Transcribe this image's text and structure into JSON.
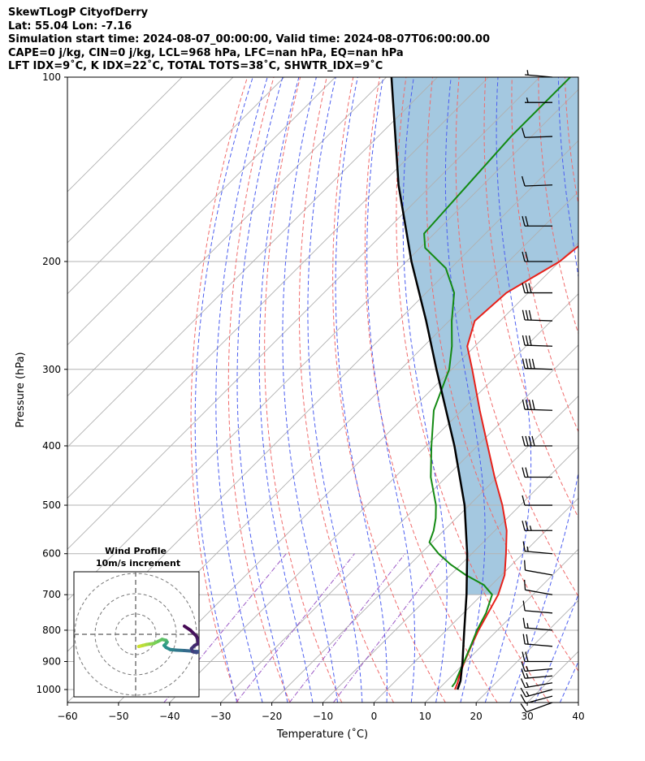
{
  "header": {
    "line1": "SkewTLogP CityofDerry",
    "line2": "Lat: 55.04   Lon: -7.16",
    "line3": "Simulation start time: 2024-08-07_00:00:00, Valid time: 2024-08-07T06:00:00.00",
    "line4": "CAPE=0 j/kg, CIN=0 j/kg, LCL=968 hPa, LFC=nan hPa, EQ=nan hPa",
    "line5": "LFT IDX=9˚C, K IDX=22˚C, TOTAL TOTS=38˚C, SHWTR_IDX=9˚C"
  },
  "chart_data": {
    "type": "line",
    "subtype": "skew-t log-p",
    "xlabel": "Temperature (˚C)",
    "ylabel": "Pressure (hPa)",
    "xlim": [
      -60,
      40
    ],
    "ylim": [
      1050,
      100
    ],
    "x_ticks": [
      -60,
      -50,
      -40,
      -30,
      -20,
      -10,
      0,
      10,
      20,
      30,
      40
    ],
    "x_tick_labels": [
      "−60",
      "−50",
      "−40",
      "−30",
      "−20",
      "−10",
      "0",
      "10",
      "20",
      "30",
      "40"
    ],
    "y_ticks": [
      1000,
      900,
      800,
      700,
      600,
      500,
      400,
      300,
      200,
      100
    ],
    "y_tick_labels": [
      "1000",
      "900",
      "800",
      "700",
      "600",
      "500",
      "400",
      "300",
      "200",
      "100"
    ],
    "grid": true,
    "y_scale": "log",
    "colors": {
      "temperature": "#e8211a",
      "dewpoint": "#138a13",
      "parcel": "#000000",
      "shade": "#a4c8e0",
      "dry_adiabat": "#f06b6b",
      "moist_adiabat": "#4c5ef0",
      "mixing_ratio": "#9b59c6",
      "isotherm": "#b0b0b0"
    },
    "series": [
      {
        "name": "Temperature",
        "p": [
          1000,
          975,
          950,
          925,
          900,
          850,
          800,
          750,
          700,
          650,
          600,
          550,
          500,
          450,
          400,
          350,
          300,
          275,
          250,
          225,
          200,
          175,
          150,
          125,
          110,
          100
        ],
        "t": [
          13.3,
          12.5,
          11.5,
          10.6,
          9.7,
          8.0,
          6.3,
          4.8,
          3.2,
          0.6,
          -3.3,
          -7.7,
          -13.5,
          -20.5,
          -28.0,
          -36.5,
          -46.0,
          -51.5,
          -55.0,
          -54.3,
          -50.0,
          -48.5,
          -49.0,
          -48.8,
          -49.0,
          -50.0
        ]
      },
      {
        "name": "Dewpoint",
        "p": [
          990,
          975,
          950,
          925,
          900,
          850,
          800,
          750,
          700,
          675,
          650,
          625,
          600,
          575,
          550,
          525,
          500,
          450,
          400,
          350,
          300,
          275,
          250,
          225,
          205,
          190,
          180,
          150,
          125,
          110,
          100
        ],
        "t": [
          12.2,
          12.0,
          11.2,
          10.4,
          9.6,
          7.9,
          6.0,
          4.4,
          2.0,
          -1.5,
          -7.0,
          -12.0,
          -16.5,
          -20.5,
          -22.0,
          -24.0,
          -26.5,
          -33.0,
          -39.0,
          -45.5,
          -50.5,
          -54.5,
          -59.5,
          -64.5,
          -71.0,
          -79.0,
          -82.0,
          -83.0,
          -84.0,
          -84.0,
          -84.0
        ]
      },
      {
        "name": "Parcel",
        "p": [
          1000,
          968,
          900,
          800,
          700,
          600,
          500,
          400,
          300,
          250,
          200,
          150,
          100
        ],
        "t": [
          13.8,
          12.7,
          9.3,
          3.5,
          -3.0,
          -10.9,
          -20.9,
          -34.5,
          -53.0,
          -64.5,
          -79.0,
          -96.5,
          -119.0
        ]
      }
    ],
    "wind_barbs": {
      "p": [
        1050,
        1025,
        1000,
        975,
        950,
        925,
        900,
        850,
        800,
        750,
        700,
        650,
        600,
        550,
        500,
        450,
        400,
        350,
        300,
        275,
        250,
        225,
        200,
        175,
        150,
        125,
        110,
        100
      ],
      "speed_kt": [
        10,
        10,
        15,
        15,
        15,
        15,
        20,
        20,
        15,
        10,
        10,
        10,
        15,
        25,
        10,
        20,
        40,
        40,
        40,
        30,
        30,
        30,
        20,
        20,
        10,
        10,
        5,
        5
      ],
      "direction_deg": [
        250,
        255,
        255,
        260,
        265,
        265,
        270,
        275,
        275,
        275,
        280,
        280,
        275,
        270,
        270,
        270,
        270,
        272,
        272,
        272,
        272,
        270,
        270,
        270,
        268,
        268,
        270,
        275
      ]
    },
    "hodograph": {
      "title": "Wind Profile",
      "subtitle": "10m/s increment",
      "u": [
        1.5,
        3.5,
        5.5,
        7.0,
        9.0,
        11.0,
        13.0,
        15.0,
        15.5,
        15.0,
        14.0,
        15.0,
        17.0,
        20.0,
        24.0,
        28.0,
        31.0,
        30.0,
        28.0,
        27.5,
        29.0,
        31.0,
        30.0,
        27.0,
        24.0
      ],
      "v": [
        -6.0,
        -5.5,
        -5.0,
        -4.8,
        -4.5,
        -3.5,
        -2.5,
        -3.0,
        -3.8,
        -4.5,
        -5.5,
        -6.5,
        -7.5,
        -7.8,
        -8.0,
        -8.3,
        -8.5,
        -9.0,
        -8.5,
        -7.0,
        -5.5,
        -4.5,
        -1.0,
        2.0,
        4.0
      ],
      "ring_spacing_ms": 10
    }
  }
}
